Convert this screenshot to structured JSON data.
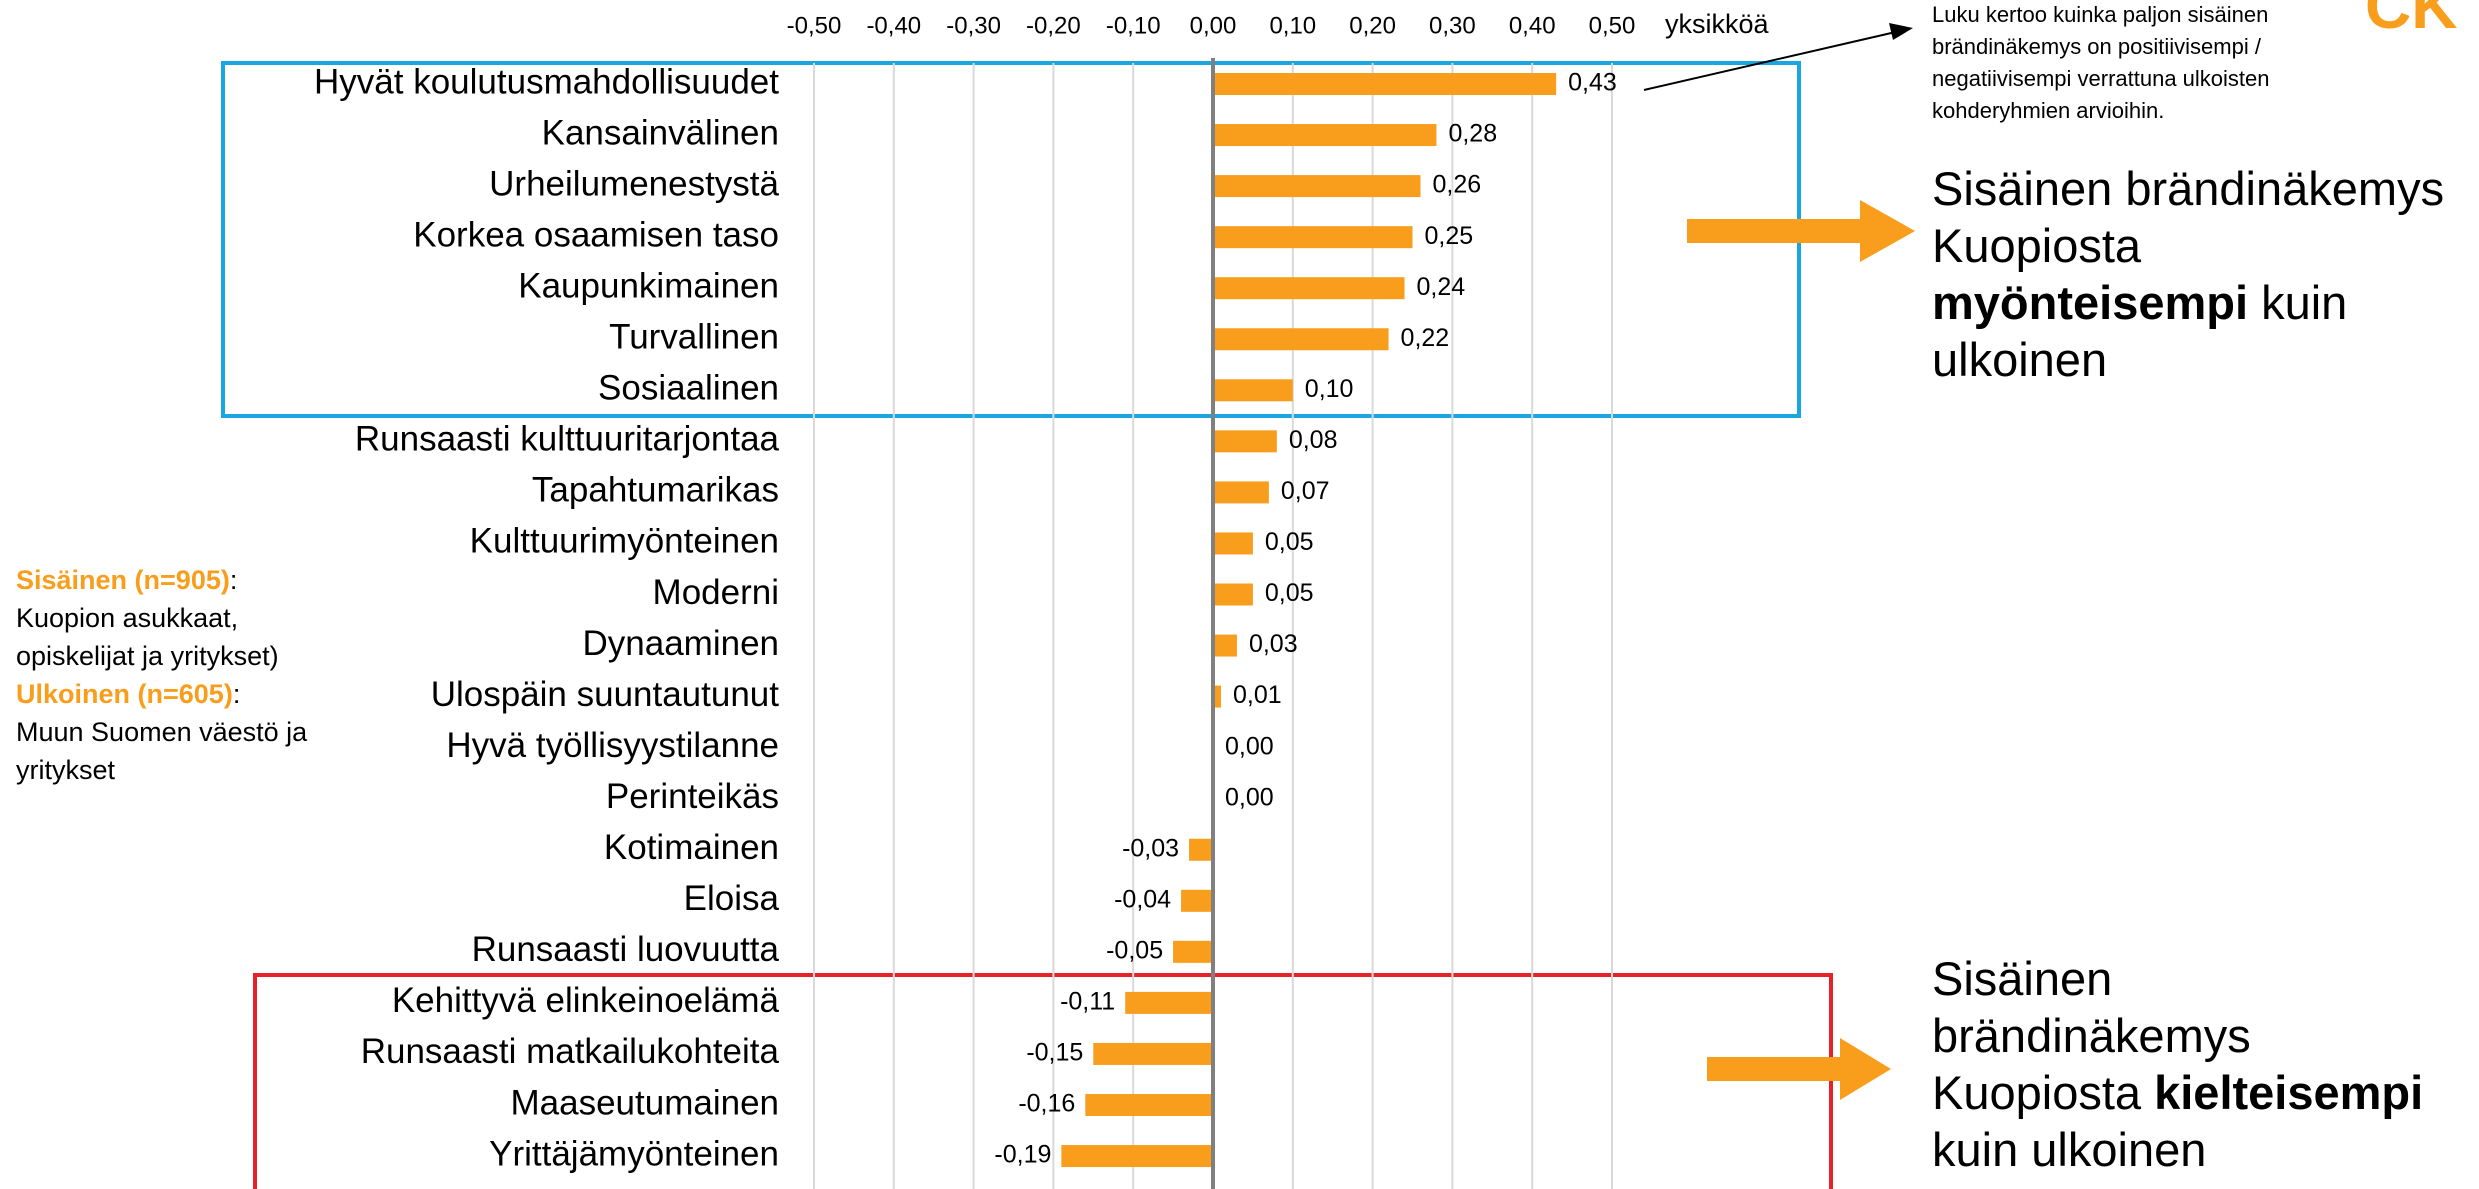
{
  "chart_data": {
    "type": "bar",
    "orientation": "horizontal",
    "x_axis_label": "yksikköä",
    "categories": [
      "Hyvät koulutusmahdollisuudet",
      "Kansainvälinen",
      "Urheilumenestystä",
      "Korkea osaamisen taso",
      "Kaupunkimainen",
      "Turvallinen",
      "Sosiaalinen",
      "Runsaasti kulttuuritarjontaa",
      "Tapahtumarikas",
      "Kulttuurimyönteinen",
      "Moderni",
      "Dynaaminen",
      "Ulospäin suuntautunut",
      "Hyvä työllisyystilanne",
      "Perinteikäs",
      "Kotimainen",
      "Eloisa",
      "Runsaasti luovuutta",
      "Kehittyvä elinkeinoelämä",
      "Runsaasti matkailukohteita",
      "Maaseutumainen",
      "Yrittäjämyönteinen"
    ],
    "values": [
      0.43,
      0.28,
      0.26,
      0.25,
      0.24,
      0.22,
      0.1,
      0.08,
      0.07,
      0.05,
      0.05,
      0.03,
      0.01,
      0.0,
      0.0,
      -0.03,
      -0.04,
      -0.05,
      -0.11,
      -0.15,
      -0.16,
      -0.19
    ],
    "value_labels": [
      "0,43",
      "0,28",
      "0,26",
      "0,25",
      "0,24",
      "0,22",
      "0,10",
      "0,08",
      "0,07",
      "0,05",
      "0,05",
      "0,03",
      "0,01",
      "0,00",
      "0,00",
      "-0,03",
      "-0,04",
      "-0,05",
      "-0,11",
      "-0,15",
      "-0,16",
      "-0,19"
    ],
    "color": "#f99d1c",
    "xlim": [
      -0.5,
      0.5
    ],
    "xticks": [
      {
        "value": -0.5,
        "label": "-0,50"
      },
      {
        "value": -0.4,
        "label": "-0,40"
      },
      {
        "value": -0.3,
        "label": "-0,30"
      },
      {
        "value": -0.2,
        "label": "-0,20"
      },
      {
        "value": -0.1,
        "label": "-0,10"
      },
      {
        "value": 0,
        "label": "0,00"
      },
      {
        "value": 0.1,
        "label": "0,10"
      },
      {
        "value": 0.2,
        "label": "0,20"
      },
      {
        "value": 0.3,
        "label": "0,30"
      },
      {
        "value": 0.4,
        "label": "0,40"
      },
      {
        "value": 0.5,
        "label": "0,50"
      }
    ],
    "grid": true,
    "logo": "CK",
    "text_blocks": [
      {
        "lines": [
          [
            {
              "text": "Luku kertoo kuinka paljon sisäinen"
            }
          ],
          [
            {
              "text": "brändinäkemys on positiivisempi /"
            }
          ],
          [
            {
              "text": "negatiivisempi verrattuna ulkoisten"
            }
          ],
          [
            {
              "text": "kohderyhmien arvioihin."
            }
          ]
        ]
      },
      {
        "lines": [
          [
            {
              "text": "Sisäinen brändinäkemys"
            }
          ],
          [
            {
              "text": "Kuopiosta"
            }
          ],
          [
            {
              "text": "myönteisempi",
              "bold": true
            },
            {
              "text": " kuin"
            }
          ],
          [
            {
              "text": "ulkoinen"
            }
          ]
        ]
      },
      {
        "lines": [
          [
            {
              "text": "Sisäinen"
            }
          ],
          [
            {
              "text": "brändinäkemys"
            }
          ],
          [
            {
              "text": "Kuopiosta "
            },
            {
              "text": "kielteisempi",
              "bold": true
            }
          ],
          [
            {
              "text": "kuin ulkoinen"
            }
          ]
        ]
      },
      {
        "lines": [
          [
            {
              "text": "Sisäinen (n=905)",
              "bold": true,
              "color": "#f99d1c"
            },
            {
              "text": ":"
            }
          ],
          [
            {
              "text": "Kuopion asukkaat,"
            }
          ],
          [
            {
              "text": "opiskelijat ja yritykset)"
            }
          ],
          [
            {
              "text": "Ulkoinen (n=605)",
              "bold": true,
              "color": "#f99d1c"
            },
            {
              "text": ":"
            }
          ],
          [
            {
              "text": "Muun Suomen väestö ja"
            }
          ],
          [
            {
              "text": "yritykset"
            }
          ]
        ]
      }
    ]
  }
}
